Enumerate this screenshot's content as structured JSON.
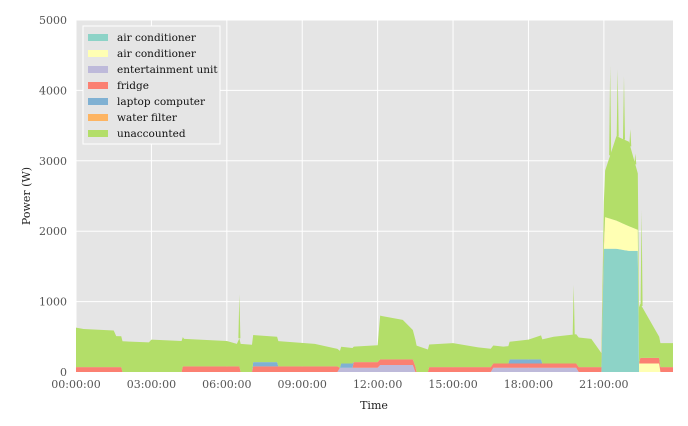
{
  "chart_data": {
    "type": "area",
    "stacked": true,
    "xlabel": "Time",
    "ylabel": "Power (W)",
    "ylim": [
      0,
      5000
    ],
    "xlim_hours": [
      0,
      23.75
    ],
    "x_ticks": [
      "00:00:00",
      "03:00:00",
      "06:00:00",
      "09:00:00",
      "12:00:00",
      "15:00:00",
      "18:00:00",
      "21:00:00"
    ],
    "y_ticks": [
      "0",
      "1000",
      "2000",
      "3000",
      "4000",
      "5000"
    ],
    "grid": true,
    "legend_position": "top-left",
    "series": [
      {
        "name": "air conditioner",
        "color": "#8dd3c7",
        "points": [
          [
            0,
            0
          ],
          [
            20.9,
            0
          ],
          [
            21.0,
            1750
          ],
          [
            21.5,
            1750
          ],
          [
            22.0,
            1720
          ],
          [
            22.35,
            1720
          ],
          [
            22.4,
            0
          ],
          [
            23.75,
            0
          ]
        ]
      },
      {
        "name": "air conditioner",
        "color": "#ffffb3",
        "points": [
          [
            0,
            0
          ],
          [
            21.0,
            0
          ],
          [
            21.05,
            450
          ],
          [
            21.5,
            400
          ],
          [
            22.0,
            350
          ],
          [
            22.35,
            300
          ],
          [
            22.4,
            120
          ],
          [
            23.2,
            120
          ],
          [
            23.25,
            0
          ],
          [
            23.75,
            0
          ]
        ]
      },
      {
        "name": "entertainment unit",
        "color": "#bebada",
        "points": [
          [
            0,
            0
          ],
          [
            10.4,
            0
          ],
          [
            10.5,
            60
          ],
          [
            12.0,
            60
          ],
          [
            12.1,
            100
          ],
          [
            13.4,
            100
          ],
          [
            13.5,
            0
          ],
          [
            16.5,
            0
          ],
          [
            16.6,
            60
          ],
          [
            19.9,
            60
          ],
          [
            20.0,
            0
          ],
          [
            23.75,
            0
          ]
        ]
      },
      {
        "name": "fridge",
        "color": "#fb8072",
        "points": [
          [
            0,
            70
          ],
          [
            1.8,
            70
          ],
          [
            1.85,
            0
          ],
          [
            4.2,
            0
          ],
          [
            4.25,
            80
          ],
          [
            6.5,
            80
          ],
          [
            6.55,
            0
          ],
          [
            7.0,
            0
          ],
          [
            7.05,
            80
          ],
          [
            10.4,
            80
          ],
          [
            10.5,
            0
          ],
          [
            11.0,
            0
          ],
          [
            11.05,
            80
          ],
          [
            13.5,
            80
          ],
          [
            13.55,
            0
          ],
          [
            14.0,
            0
          ],
          [
            14.05,
            70
          ],
          [
            16.5,
            70
          ],
          [
            16.6,
            60
          ],
          [
            19.9,
            60
          ],
          [
            20.0,
            70
          ],
          [
            21.0,
            70
          ],
          [
            21.05,
            0
          ],
          [
            22.4,
            0
          ],
          [
            22.45,
            80
          ],
          [
            23.2,
            80
          ],
          [
            23.25,
            70
          ],
          [
            23.75,
            70
          ]
        ]
      },
      {
        "name": "laptop computer",
        "color": "#80b1d3",
        "points": [
          [
            0,
            0
          ],
          [
            7.0,
            0
          ],
          [
            7.05,
            60
          ],
          [
            8.0,
            60
          ],
          [
            8.05,
            0
          ],
          [
            10.5,
            0
          ],
          [
            10.55,
            60
          ],
          [
            11.0,
            60
          ],
          [
            11.05,
            0
          ],
          [
            17.2,
            0
          ],
          [
            17.25,
            60
          ],
          [
            18.5,
            60
          ],
          [
            18.55,
            0
          ],
          [
            23.75,
            0
          ]
        ]
      },
      {
        "name": "water filter",
        "color": "#fdb462",
        "points": [
          [
            0,
            0
          ],
          [
            23.75,
            0
          ]
        ]
      },
      {
        "name": "unaccounted",
        "color": "#b3de69",
        "points": [
          [
            0,
            560
          ],
          [
            0.3,
            540
          ],
          [
            1.5,
            520
          ],
          [
            1.6,
            440
          ],
          [
            2.9,
            420
          ],
          [
            3.0,
            460
          ],
          [
            4.2,
            440
          ],
          [
            4.3,
            390
          ],
          [
            6.0,
            360
          ],
          [
            6.4,
            320
          ],
          [
            6.5,
            400
          ],
          [
            8.0,
            360
          ],
          [
            9.5,
            320
          ],
          [
            10.5,
            240
          ],
          [
            11.0,
            220
          ],
          [
            12.0,
            240
          ],
          [
            12.1,
            620
          ],
          [
            13.0,
            560
          ],
          [
            13.5,
            380
          ],
          [
            14.0,
            320
          ],
          [
            15.0,
            340
          ],
          [
            16.0,
            280
          ],
          [
            17.0,
            240
          ],
          [
            18.0,
            280
          ],
          [
            18.5,
            340
          ],
          [
            19.0,
            380
          ],
          [
            20.0,
            420
          ],
          [
            20.5,
            400
          ],
          [
            20.9,
            200
          ],
          [
            21.0,
            600
          ],
          [
            21.5,
            1200
          ],
          [
            22.0,
            1200
          ],
          [
            22.35,
            800
          ],
          [
            22.4,
            800
          ],
          [
            23.2,
            300
          ],
          [
            23.25,
            340
          ],
          [
            23.75,
            340
          ]
        ]
      }
    ],
    "spikes": [
      {
        "hour": 6.5,
        "total": 1100
      },
      {
        "hour": 19.8,
        "total": 1240
      },
      {
        "hour": 21.25,
        "total": 4350
      },
      {
        "hour": 21.55,
        "total": 4300
      },
      {
        "hour": 21.8,
        "total": 4200
      },
      {
        "hour": 22.05,
        "total": 3450
      },
      {
        "hour": 22.25,
        "total": 3100
      },
      {
        "hour": 22.5,
        "total": 2300
      }
    ]
  }
}
